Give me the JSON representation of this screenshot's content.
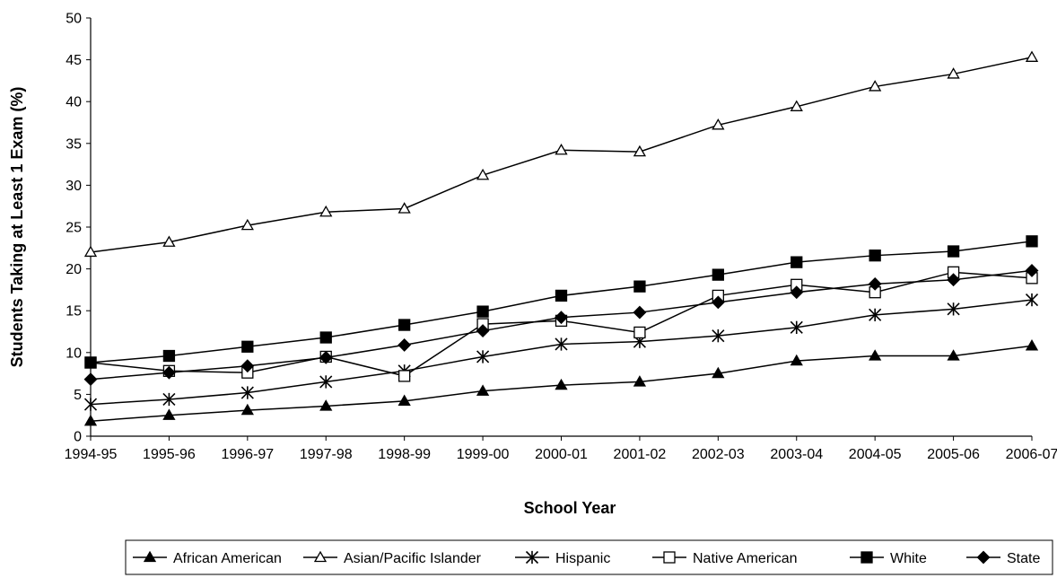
{
  "chart_data": {
    "type": "line",
    "xlabel": "School Year",
    "ylabel": "Students Taking at Least 1 Exam (%)",
    "ylim": [
      0,
      50
    ],
    "yticks": [
      0,
      5,
      10,
      15,
      20,
      25,
      30,
      35,
      40,
      45,
      50
    ],
    "grid": false,
    "legend_position": "bottom",
    "categories": [
      "1994-95",
      "1995-96",
      "1996-97",
      "1997-98",
      "1998-99",
      "1999-00",
      "2000-01",
      "2001-02",
      "2002-03",
      "2003-04",
      "2004-05",
      "2005-06",
      "2006-07"
    ],
    "series": [
      {
        "name": "African American",
        "marker": "filled-triangle",
        "color": "#000000",
        "values": [
          1.8,
          2.5,
          3.1,
          3.6,
          4.2,
          5.4,
          6.1,
          6.5,
          7.5,
          9.0,
          9.6,
          9.6,
          10.8
        ]
      },
      {
        "name": "Asian/Pacific Islander",
        "marker": "open-triangle",
        "color": "#000000",
        "values": [
          22.0,
          23.2,
          25.2,
          26.8,
          27.2,
          31.2,
          34.2,
          34.0,
          37.2,
          39.4,
          41.8,
          43.3,
          45.3
        ]
      },
      {
        "name": "Hispanic",
        "marker": "asterisk",
        "color": "#000000",
        "values": [
          3.8,
          4.4,
          5.2,
          6.5,
          7.8,
          9.5,
          11.0,
          11.3,
          12.0,
          13.0,
          14.5,
          15.2,
          16.3
        ]
      },
      {
        "name": "Native American",
        "marker": "open-square",
        "color": "#000000",
        "values": [
          8.8,
          7.8,
          7.6,
          9.5,
          7.2,
          13.4,
          13.8,
          12.4,
          16.8,
          18.1,
          17.2,
          19.6,
          18.9
        ]
      },
      {
        "name": "White",
        "marker": "filled-square",
        "color": "#000000",
        "values": [
          8.8,
          9.6,
          10.7,
          11.8,
          13.3,
          14.9,
          16.8,
          17.9,
          19.3,
          20.8,
          21.6,
          22.1,
          23.3
        ]
      },
      {
        "name": "State",
        "marker": "filled-diamond",
        "color": "#000000",
        "values": [
          6.8,
          7.6,
          8.4,
          9.4,
          10.9,
          12.6,
          14.2,
          14.8,
          16.0,
          17.2,
          18.2,
          18.7,
          19.8
        ]
      }
    ]
  }
}
